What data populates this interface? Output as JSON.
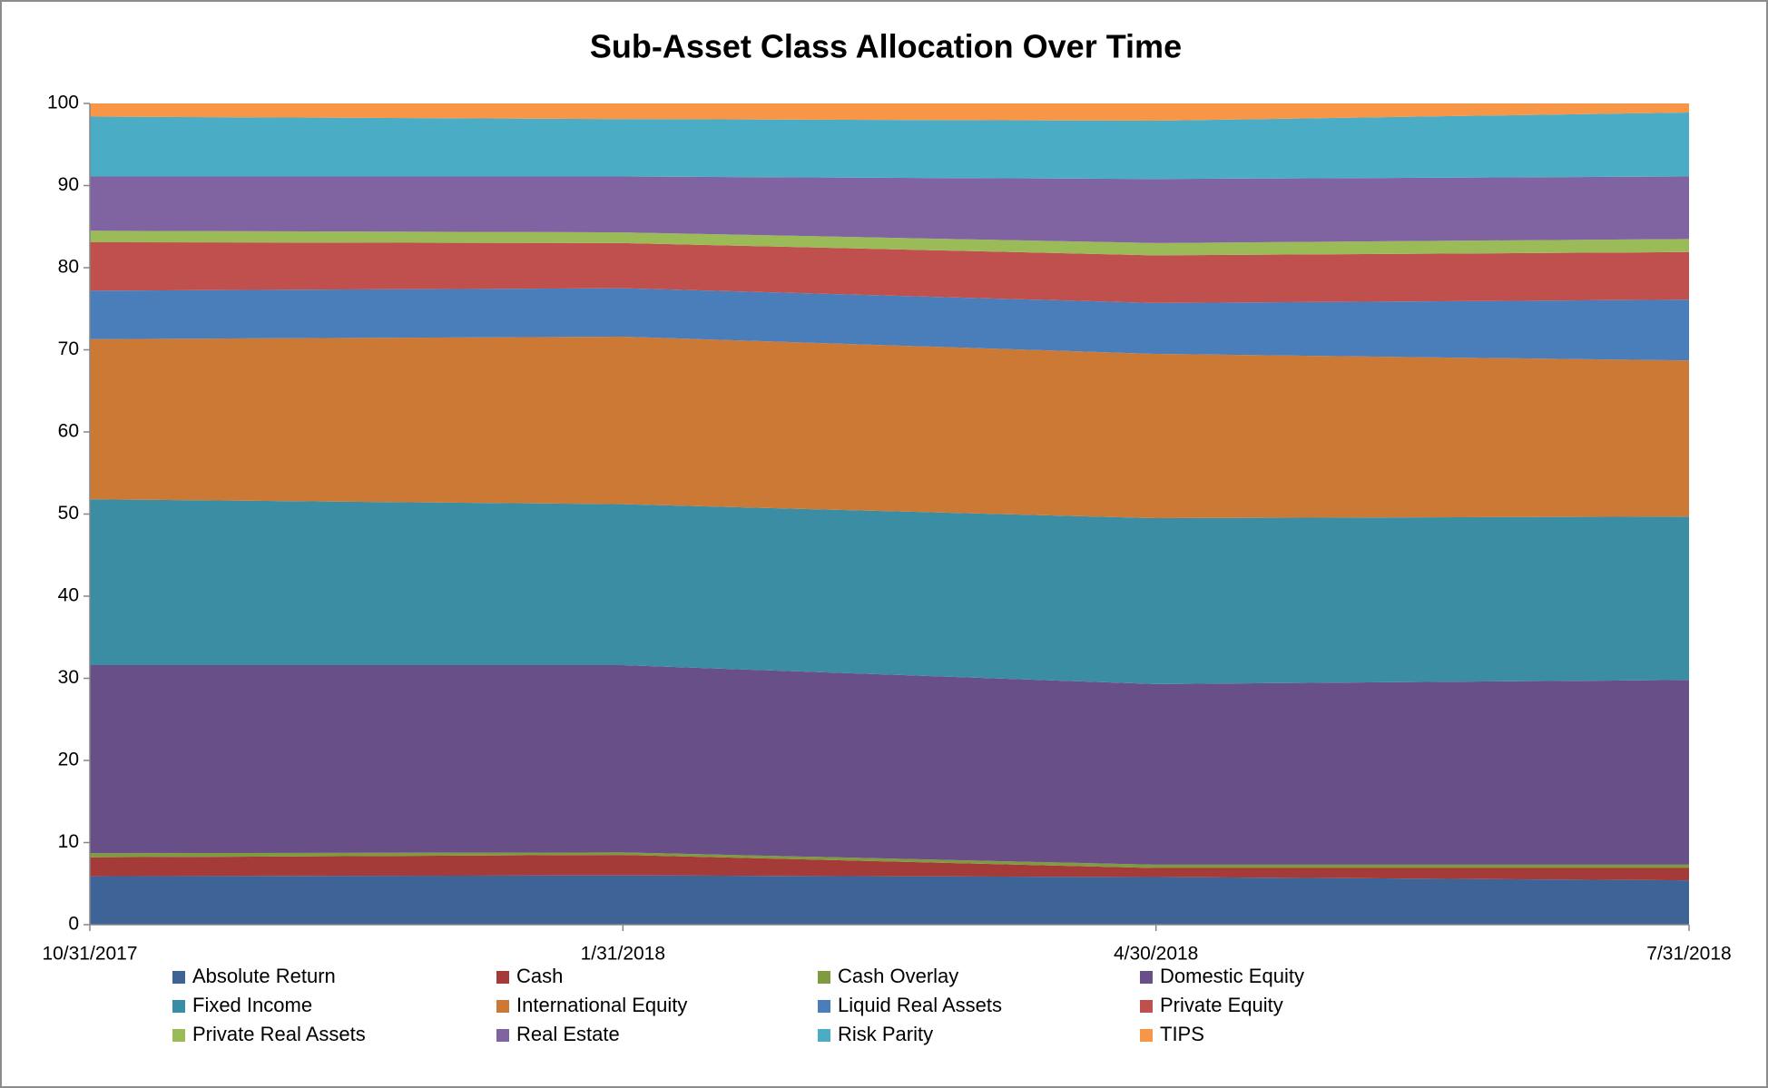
{
  "chart_data": {
    "type": "area",
    "stacked": true,
    "title": "Sub-Asset Class Allocation Over Time",
    "categories": [
      "10/31/2017",
      "1/31/2018",
      "4/30/2018",
      "7/31/2018"
    ],
    "ylim": [
      0,
      100
    ],
    "yticks": [
      0,
      10,
      20,
      30,
      40,
      50,
      60,
      70,
      80,
      90,
      100
    ],
    "grid": false,
    "legend": "bottom",
    "series": [
      {
        "name": "Absolute Return",
        "color": "#3E6497",
        "values": [
          5.9,
          6.0,
          5.8,
          5.4
        ]
      },
      {
        "name": "Cash",
        "color": "#A53B39",
        "values": [
          2.3,
          2.5,
          1.1,
          1.5
        ]
      },
      {
        "name": "Cash Overlay",
        "color": "#7F9A3F",
        "values": [
          0.5,
          0.3,
          0.4,
          0.4
        ]
      },
      {
        "name": "Domestic Equity",
        "color": "#694F87",
        "values": [
          22.9,
          22.8,
          22.0,
          22.5
        ]
      },
      {
        "name": "Fixed Income",
        "color": "#3A8DA3",
        "values": [
          20.2,
          19.6,
          20.2,
          19.9
        ]
      },
      {
        "name": "International Equity",
        "color": "#CC7936",
        "values": [
          19.5,
          20.4,
          20.0,
          19.0
        ]
      },
      {
        "name": "Liquid Real Assets",
        "color": "#4A7EBB",
        "values": [
          5.9,
          5.9,
          6.2,
          7.4
        ]
      },
      {
        "name": "Private Equity",
        "color": "#C0504D",
        "values": [
          5.9,
          5.5,
          5.8,
          5.8
        ]
      },
      {
        "name": "Private Real Assets",
        "color": "#9BBB59",
        "values": [
          1.4,
          1.3,
          1.5,
          1.6
        ]
      },
      {
        "name": "Real Estate",
        "color": "#8064A2",
        "values": [
          6.6,
          6.8,
          7.8,
          7.6
        ]
      },
      {
        "name": "Risk Parity",
        "color": "#4BACC6",
        "values": [
          7.3,
          7.0,
          7.1,
          7.8
        ]
      },
      {
        "name": "TIPS",
        "color": "#F79646",
        "values": [
          1.6,
          1.9,
          2.1,
          1.1
        ]
      }
    ]
  }
}
